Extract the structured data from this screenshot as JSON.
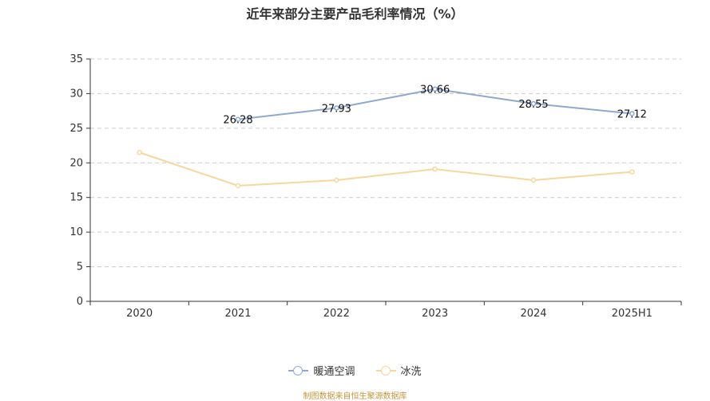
{
  "chart_data": {
    "type": "line",
    "title": "近年来部分主要产品毛利率情况（%）",
    "categories": [
      "2020",
      "2021",
      "2022",
      "2023",
      "2024",
      "2025H1"
    ],
    "ylim": [
      0,
      35
    ],
    "yticks": [
      0,
      5,
      10,
      15,
      20,
      25,
      30,
      35
    ],
    "grid": true,
    "legend_position": "bottom",
    "series": [
      {
        "name": "暖通空调",
        "color": "#8fa8d0",
        "values": [
          null,
          26.28,
          27.93,
          30.66,
          28.55,
          27.12
        ],
        "labels": [
          "",
          "26.28",
          "27.93",
          "30.66",
          "28.55",
          "27.12"
        ]
      },
      {
        "name": "冰洗",
        "color": "#f6d79c",
        "values": [
          21.5,
          16.7,
          17.5,
          19.1,
          17.5,
          18.7
        ]
      }
    ]
  },
  "source_note": "制图数据来自恒生聚源数据库"
}
